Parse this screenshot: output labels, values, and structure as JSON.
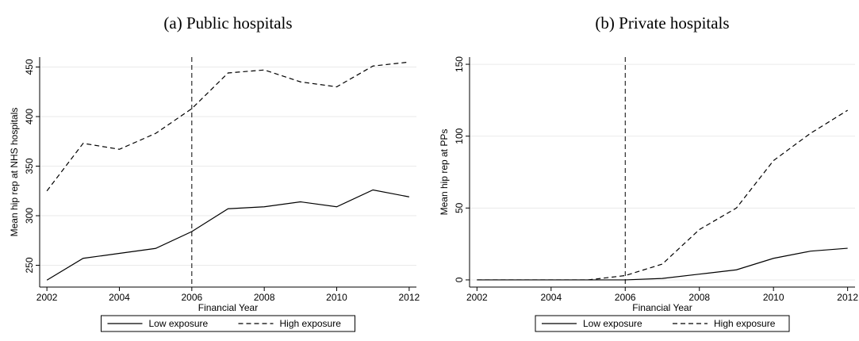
{
  "chart_data": [
    {
      "type": "line",
      "title": "(a) Public hospitals",
      "x_label": "Financial Year",
      "y_label": "Mean hip rep at NHS hospitals",
      "x": [
        2002,
        2003,
        2004,
        2005,
        2006,
        2007,
        2008,
        2009,
        2010,
        2011,
        2012
      ],
      "series": [
        {
          "name": "Low exposure",
          "color": "#000000",
          "linestyle": "solid",
          "values": [
            235,
            257,
            262,
            267,
            284,
            307,
            309,
            314,
            309,
            326,
            319
          ]
        },
        {
          "name": "High exposure",
          "color": "#000000",
          "linestyle": "dashed",
          "values": [
            325,
            373,
            367,
            383,
            408,
            444,
            447,
            435,
            430,
            451,
            455
          ]
        }
      ],
      "xlim": [
        2001.8,
        2012.2
      ],
      "xticks": [
        2002,
        2004,
        2006,
        2008,
        2010,
        2012
      ],
      "ylim": [
        228,
        460
      ],
      "yticks": [
        250,
        300,
        350,
        400,
        450
      ],
      "grid": true,
      "vline": 2006,
      "legend": "bottom"
    },
    {
      "type": "line",
      "title": "(b) Private hospitals",
      "x_label": "Financial Year",
      "y_label": "Mean hip rep at PPs",
      "x": [
        2002,
        2003,
        2004,
        2005,
        2006,
        2007,
        2008,
        2009,
        2010,
        2011,
        2012
      ],
      "series": [
        {
          "name": "Low exposure",
          "color": "#000000",
          "linestyle": "solid",
          "values": [
            0,
            0,
            0,
            0,
            0,
            1,
            4,
            7,
            15,
            20,
            22
          ]
        },
        {
          "name": "High exposure",
          "color": "#000000",
          "linestyle": "dashed",
          "values": [
            0,
            0,
            0,
            0,
            3,
            11,
            35,
            50,
            83,
            102,
            118
          ]
        }
      ],
      "xlim": [
        2001.8,
        2012.2
      ],
      "xticks": [
        2002,
        2004,
        2006,
        2008,
        2010,
        2012
      ],
      "ylim": [
        -5,
        155
      ],
      "yticks": [
        0,
        50,
        100,
        150
      ],
      "grid": true,
      "vline": 2006,
      "legend": "bottom"
    }
  ]
}
